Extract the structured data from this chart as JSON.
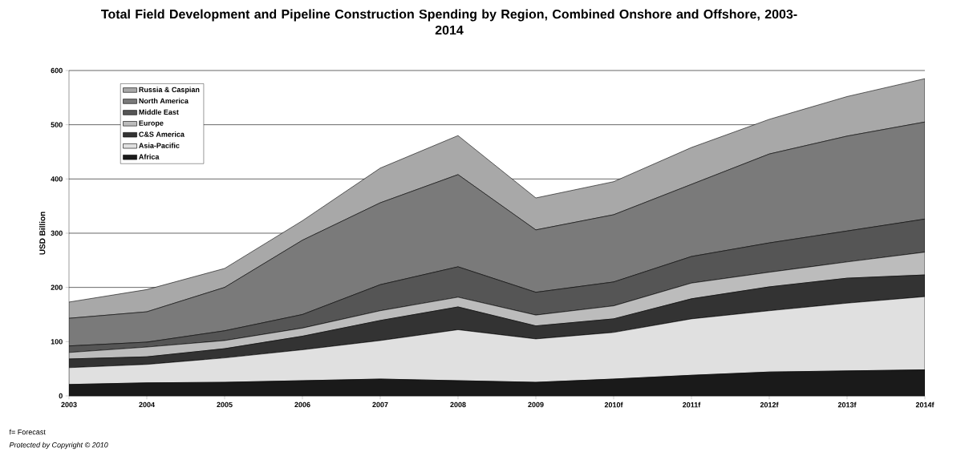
{
  "chart_data": {
    "type": "area",
    "stacked": true,
    "title": "Total Field Development and Pipeline Construction Spending by Region, Combined Onshore and Offshore, 2003-2014",
    "ylabel": "USD Billion",
    "categories": [
      "2003",
      "2004",
      "2005",
      "2006",
      "2007",
      "2008",
      "2009",
      "2010f",
      "2011f",
      "2012f",
      "2013f",
      "2014f"
    ],
    "series": [
      {
        "name": "Africa",
        "color": "#1a1a1a",
        "values": [
          21,
          24,
          25,
          28,
          31,
          28,
          25,
          31,
          38,
          44,
          46,
          48
        ]
      },
      {
        "name": "Asia-Pacific",
        "color": "#e0e0e0",
        "values": [
          31,
          34,
          45,
          57,
          71,
          94,
          80,
          86,
          104,
          113,
          125,
          135
        ]
      },
      {
        "name": "C&S America",
        "color": "#333333",
        "values": [
          16,
          14,
          17,
          25,
          37,
          42,
          24,
          25,
          37,
          44,
          46,
          40
        ]
      },
      {
        "name": "Europe",
        "color": "#bcbcbc",
        "values": [
          12,
          18,
          15,
          15,
          18,
          18,
          20,
          24,
          29,
          27,
          30,
          42
        ]
      },
      {
        "name": "Middle East",
        "color": "#555555",
        "values": [
          12,
          9,
          18,
          25,
          48,
          56,
          42,
          44,
          49,
          54,
          57,
          61
        ]
      },
      {
        "name": "North America",
        "color": "#7a7a7a",
        "values": [
          51,
          56,
          80,
          137,
          151,
          170,
          115,
          124,
          133,
          164,
          175,
          179
        ]
      },
      {
        "name": "Russia & Caspian",
        "color": "#a8a8a8",
        "values": [
          30,
          41,
          35,
          36,
          64,
          72,
          59,
          61,
          68,
          64,
          73,
          80
        ]
      }
    ],
    "ylim": [
      0,
      600
    ],
    "yticks": [
      0,
      100,
      200,
      300,
      400,
      500,
      600
    ],
    "grid": "y",
    "legend": "top left",
    "annotations": [
      "f= Forecast",
      "Protected by Copyright © 2010"
    ]
  }
}
